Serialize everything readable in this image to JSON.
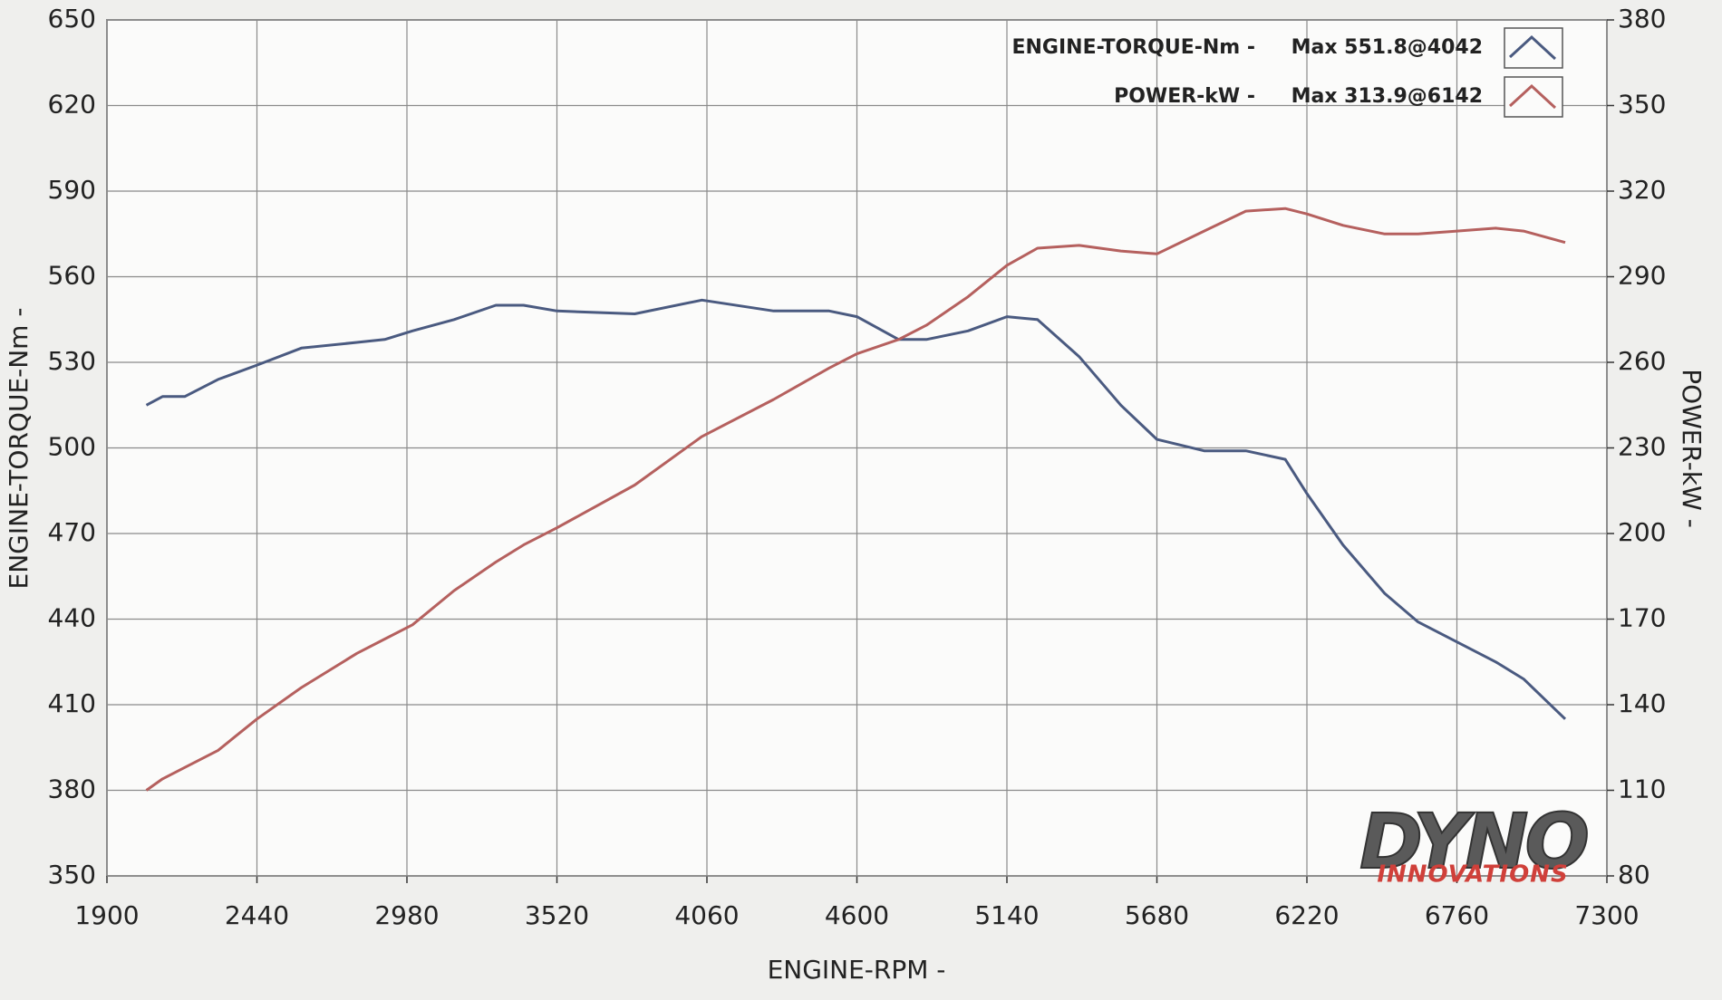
{
  "chart_data": {
    "type": "line",
    "x_label": "ENGINE-RPM -",
    "y_label": "ENGINE-TORQUE-Nm -",
    "y2_label": "POWER-kW -",
    "x": [
      2042,
      2100,
      2180,
      2300,
      2440,
      2600,
      2800,
      2900,
      3000,
      3150,
      3300,
      3400,
      3520,
      3800,
      4042,
      4300,
      4500,
      4600,
      4750,
      4850,
      5000,
      5140,
      5250,
      5400,
      5550,
      5680,
      5850,
      6000,
      6142,
      6220,
      6350,
      6500,
      6620,
      6760,
      6900,
      7000,
      7150
    ],
    "series": [
      {
        "name": "ENGINE-TORQUE-Nm -",
        "legend_note": "Max 551.8@4042",
        "color": "#4a5a80",
        "axis": "y",
        "values": [
          515,
          518,
          518,
          524,
          529,
          535,
          537,
          538,
          541,
          545,
          550,
          550,
          548,
          547,
          551.8,
          548,
          548,
          546,
          538,
          538,
          541,
          546,
          545,
          532,
          515,
          503,
          499,
          499,
          496,
          484,
          466,
          449,
          439,
          432,
          425,
          419,
          405
        ]
      },
      {
        "name": "POWER-kW -",
        "legend_note": "Max 313.9@6142",
        "color": "#b5605e",
        "axis": "y2",
        "values": [
          110,
          114,
          118,
          124,
          135,
          146,
          158,
          163,
          168,
          180,
          190,
          196,
          202,
          217,
          234,
          247,
          258,
          263,
          268,
          273,
          283,
          294,
          300,
          301,
          299,
          298,
          306,
          313,
          313.9,
          312,
          308,
          305,
          305,
          306,
          307,
          306,
          302
        ]
      }
    ],
    "xlim": [
      1900,
      7300
    ],
    "xticks": [
      1900,
      2440,
      2980,
      3520,
      4060,
      4600,
      5140,
      5680,
      6220,
      6760,
      7300
    ],
    "ylim": [
      350,
      650
    ],
    "yticks": [
      350,
      380,
      410,
      440,
      470,
      500,
      530,
      560,
      590,
      620,
      650
    ],
    "y2lim": [
      80,
      380
    ],
    "y2ticks": [
      80,
      110,
      140,
      170,
      200,
      230,
      260,
      290,
      320,
      350,
      380
    ],
    "grid": true,
    "legend": "top-right",
    "logo": {
      "main": "DYNO",
      "sub": "INNOVATIONS"
    }
  }
}
